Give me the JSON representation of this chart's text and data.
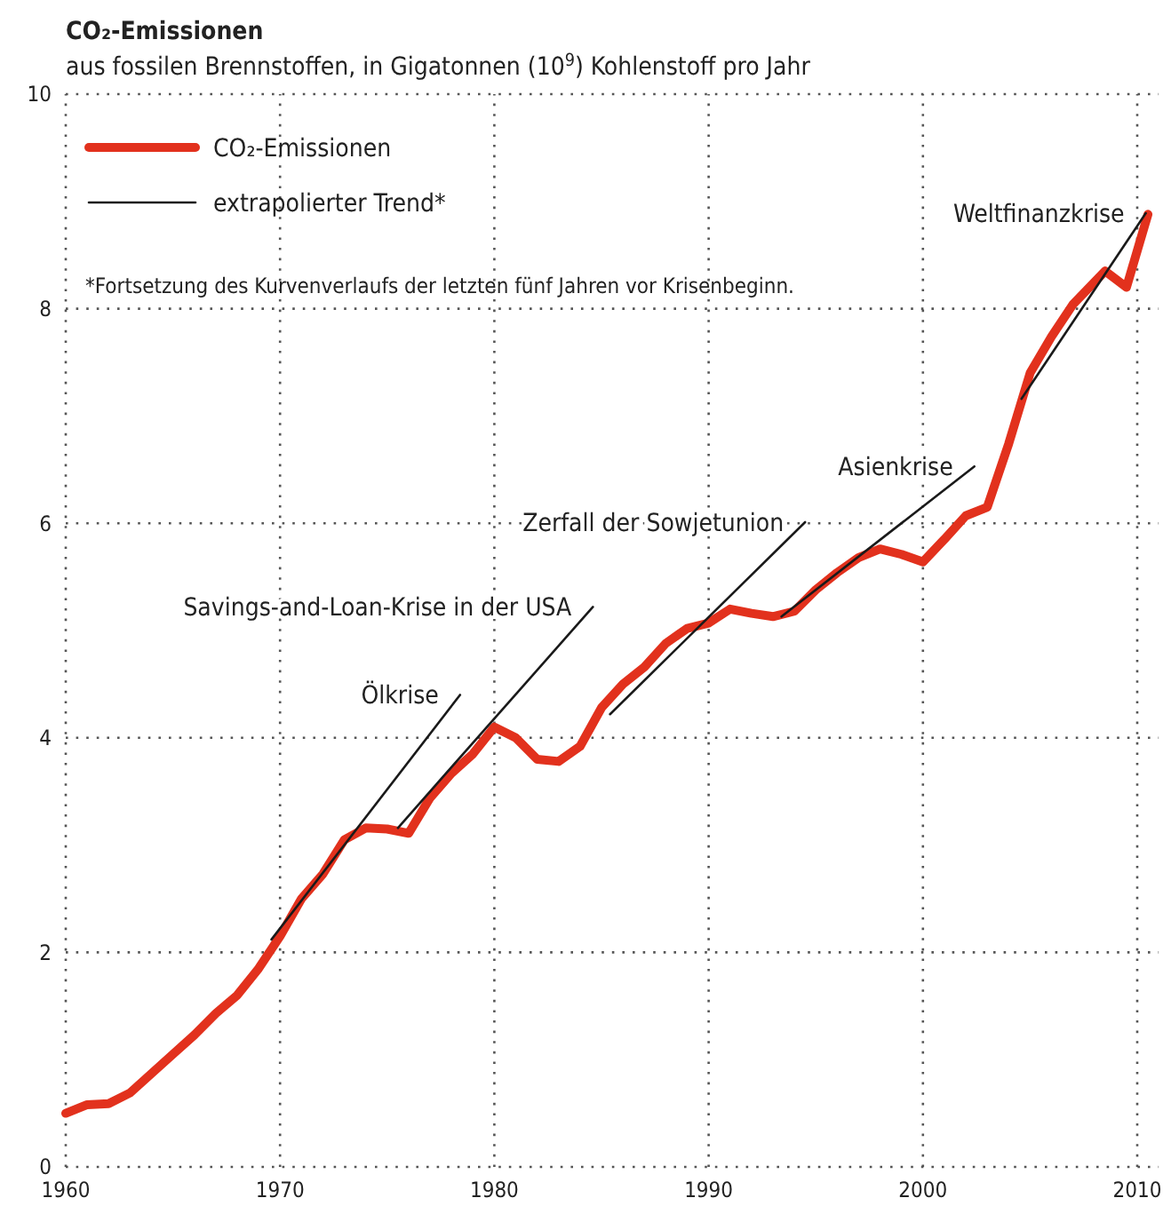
{
  "chart_data": {
    "type": "line",
    "title": "CO₂-Emissionen",
    "subtitle": "aus fossilen Brennstoffen, in Gigatonnen (10$^{9}$) Kohlenstoff pro Jahr",
    "xlim": [
      1960,
      2011
    ],
    "ylim": [
      0,
      10
    ],
    "xticks": [
      1960,
      1970,
      1980,
      1990,
      2000,
      2010
    ],
    "yticks": [
      0,
      2,
      4,
      6,
      8,
      10
    ],
    "grid": true,
    "legend": "top left",
    "series": [
      {
        "name": "CO₂-Emissionen",
        "color": "#e2311d",
        "x": [
          1960,
          1961,
          1962,
          1963,
          1964,
          1965,
          1966,
          1967,
          1968,
          1969,
          1970,
          1971,
          1972,
          1973,
          1974,
          1975,
          1976,
          1977,
          1978,
          1979,
          1980,
          1981,
          1982,
          1983,
          1984,
          1985,
          1986,
          1987,
          1988,
          1989,
          1990,
          1991,
          1992,
          1993,
          1994,
          1995,
          1996,
          1997,
          1998,
          1999,
          2000,
          2001,
          2002,
          2003,
          2004,
          2005,
          2006,
          2007,
          2008.5,
          2009.5,
          2010.5
        ],
        "values": [
          0.5,
          0.58,
          0.59,
          0.69,
          0.87,
          1.05,
          1.23,
          1.43,
          1.6,
          1.85,
          2.15,
          2.5,
          2.73,
          3.05,
          3.16,
          3.15,
          3.11,
          3.44,
          3.67,
          3.85,
          4.1,
          4.0,
          3.8,
          3.78,
          3.92,
          4.28,
          4.5,
          4.66,
          4.88,
          5.02,
          5.07,
          5.2,
          5.16,
          5.13,
          5.18,
          5.38,
          5.54,
          5.68,
          5.76,
          5.71,
          5.64,
          5.85,
          6.07,
          6.15,
          6.74,
          7.4,
          7.74,
          8.04,
          8.35,
          8.2,
          8.88
        ]
      },
      {
        "name": "extrapolierter Trend*",
        "type": "line",
        "color": "#1a1a1a",
        "x": [
          1969.6,
          1978.4
        ],
        "values": [
          2.12,
          4.4
        ]
      },
      {
        "type": "line",
        "color": "#1a1a1a",
        "x": [
          1975.5,
          1984.6
        ],
        "values": [
          3.16,
          5.22
        ]
      },
      {
        "type": "line",
        "color": "#1a1a1a",
        "x": [
          1985.4,
          1994.5
        ],
        "values": [
          4.22,
          6.01
        ]
      },
      {
        "type": "line",
        "color": "#1a1a1a",
        "x": [
          1993.4,
          2002.4
        ],
        "values": [
          5.13,
          6.53
        ]
      },
      {
        "type": "line",
        "color": "#1a1a1a",
        "x": [
          2004.6,
          2010.4
        ],
        "values": [
          7.16,
          8.89
        ]
      }
    ],
    "annotations": [
      "*Fortsetzung des Kurvenverlaufs der letzten fünf Jahren vor Krisenbeginn.",
      {
        "text": "Ölkrise",
        "x": 1978.4,
        "y": 4.4
      },
      {
        "text": "Savings-and-Loan-Krise in der USA",
        "x": 1984.6,
        "y": 5.22
      },
      {
        "text": "Zerfall der Sowjetunion",
        "x": 1994.5,
        "y": 6.01
      },
      {
        "text": "Asienkrise",
        "x": 2002.4,
        "y": 6.53
      },
      {
        "text": "Weltfinanzkrise",
        "x": 2010.4,
        "y": 8.89
      }
    ]
  }
}
